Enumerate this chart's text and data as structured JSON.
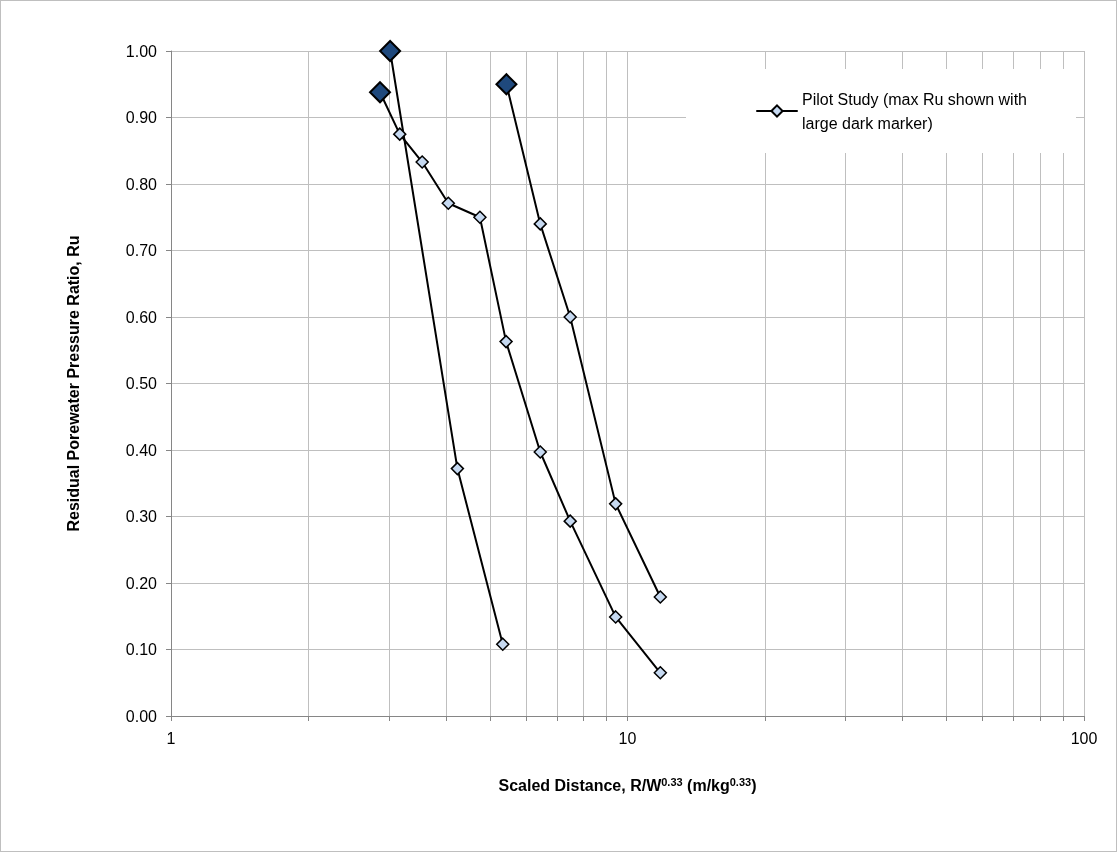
{
  "chart_data": {
    "type": "line",
    "xlabel": "Scaled Distance, R/W$^{0.33}$ (m/kg$^{0.33}$)",
    "ylabel": "Residual Porewater Pressure Ratio, Ru",
    "log": "x",
    "grid": true,
    "legend": "top right",
    "marker": "diamond",
    "line_style": "solid",
    "xlim": [
      1,
      100
    ],
    "xticks": [
      1,
      {
        "value": 2,
        "label": null
      },
      {
        "value": 3,
        "label": null
      },
      {
        "value": 4,
        "label": null
      },
      {
        "value": 5,
        "label": null
      },
      {
        "value": 6,
        "label": null
      },
      {
        "value": 7,
        "label": null
      },
      {
        "value": 8,
        "label": null
      },
      {
        "value": 9,
        "label": null
      },
      10,
      {
        "value": 20,
        "label": null
      },
      {
        "value": 30,
        "label": null
      },
      {
        "value": 40,
        "label": null
      },
      {
        "value": 50,
        "label": null
      },
      {
        "value": 60,
        "label": null
      },
      {
        "value": 70,
        "label": null
      },
      {
        "value": 80,
        "label": null
      },
      {
        "value": 90,
        "label": null
      },
      100
    ],
    "ylim": [
      0,
      1
    ],
    "yticks": [
      {
        "value": 0,
        "label": "0.00"
      },
      {
        "value": 0.1,
        "label": "0.10"
      },
      {
        "value": 0.2,
        "label": "0.20"
      },
      {
        "value": 0.3,
        "label": "0.30"
      },
      {
        "value": 0.4,
        "label": "0.40"
      },
      {
        "value": 0.5,
        "label": "0.50"
      },
      {
        "value": 0.6,
        "label": "0.60"
      },
      {
        "value": 0.7,
        "label": "0.70"
      },
      {
        "value": 0.8,
        "label": "0.80"
      },
      {
        "value": 0.9,
        "label": "0.90"
      },
      {
        "value": 1,
        "label": "1.00"
      }
    ],
    "series": [
      {
        "name": "Pilot Study (max Ru shown with large dark marker)",
        "color": "#000000",
        "x": [
          2.87,
          3.17,
          3.55,
          4.05,
          4.75,
          5.42,
          6.44,
          7.49,
          9.42,
          11.8
        ],
        "values": [
          0.938,
          0.875,
          0.833,
          0.771,
          0.75,
          0.563,
          0.397,
          0.293,
          0.149,
          0.065
        ],
        "colors": [
          "#1f497d",
          "#c6d9f1",
          "#c6d9f1",
          "#c6d9f1",
          "#c6d9f1",
          "#c6d9f1",
          "#c6d9f1",
          "#c6d9f1",
          "#c6d9f1",
          "#c6d9f1"
        ]
      },
      {
        "color": "#000000",
        "x": [
          3.02,
          4.24,
          5.33
        ],
        "values": [
          1.0,
          0.372,
          0.108
        ],
        "colors": [
          "#1f497d",
          "#c6d9f1",
          "#c6d9f1"
        ]
      },
      {
        "color": "#000000",
        "x": [
          5.43,
          6.44,
          7.49,
          9.42,
          11.8
        ],
        "values": [
          0.95,
          0.74,
          0.6,
          0.319,
          0.179
        ],
        "colors": [
          "#1f497d",
          "#c6d9f1",
          "#c6d9f1",
          "#c6d9f1",
          "#c6d9f1"
        ]
      }
    ]
  }
}
